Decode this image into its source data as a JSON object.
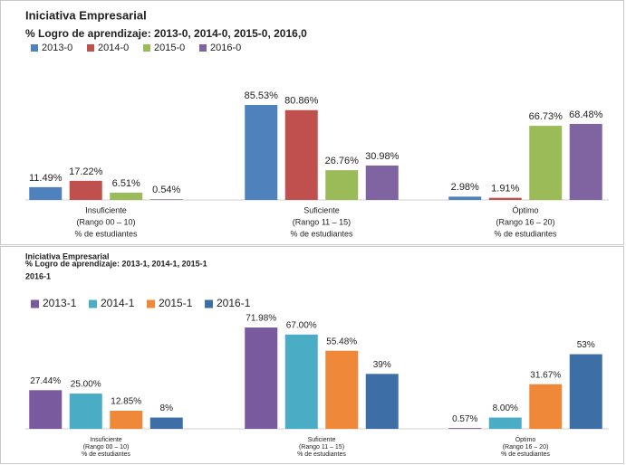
{
  "chart_data": [
    {
      "type": "bar",
      "title": "Iniciativa Empresarial",
      "subtitle": [
        "% Logro de aprendizaje: 2013-0, 2014-0, 2015-0, 2016,0"
      ],
      "categories": [
        [
          "Insuficiente",
          "(Rango 00 – 10)",
          "% de estudiantes"
        ],
        [
          "Suficiente",
          "(Rango 11 – 15)",
          "% de estudiantes"
        ],
        [
          "Óptimo",
          "(Rango 16 – 20)",
          "% de estudiantes"
        ]
      ],
      "series": [
        {
          "name": "2013-0",
          "color": "#4f81bd",
          "values": [
            11.49,
            85.53,
            2.98
          ],
          "value_labels": [
            "11.49%",
            "85.53%",
            "2.98%"
          ]
        },
        {
          "name": "2014-0",
          "color": "#c0504d",
          "values": [
            17.22,
            80.86,
            1.91
          ],
          "value_labels": [
            "17.22%",
            "80.86%",
            "1.91%"
          ]
        },
        {
          "name": "2015-0",
          "color": "#9bbb59",
          "values": [
            6.51,
            26.76,
            66.73
          ],
          "value_labels": [
            "6.51%",
            "26.76%",
            "66.73%"
          ]
        },
        {
          "name": "2016-0",
          "color": "#8064a2",
          "values": [
            0.54,
            30.98,
            68.48
          ],
          "value_labels": [
            "0.54%",
            "30.98%",
            "68.48%"
          ]
        }
      ],
      "legend": "top-left"
    },
    {
      "type": "bar",
      "title": "Iniciativa Empresarial",
      "subtitle": [
        "% Logro de aprendizaje: 2013-1, 2014-1, 2015-1",
        "2016-1"
      ],
      "categories": [
        [
          "Insuficiente",
          "(Rango 00 – 10)",
          "% de estudiantes"
        ],
        [
          "Suficiente",
          "(Rango 11 – 15)",
          "% de estudiantes"
        ],
        [
          "Óptimo",
          "(Rango 16 – 20)",
          "% de estudiantes"
        ]
      ],
      "series": [
        {
          "name": "2013-1",
          "color": "#7a5a9e",
          "values": [
            27.44,
            71.98,
            0.57
          ],
          "value_labels": [
            "27.44%",
            "71.98%",
            "0.57%"
          ]
        },
        {
          "name": "2014-1",
          "color": "#4bacc6",
          "values": [
            25.0,
            67.0,
            8.0
          ],
          "value_labels": [
            "25.00%",
            "67.00%",
            "8.00%"
          ]
        },
        {
          "name": "2015-1",
          "color": "#f0883a",
          "values": [
            12.85,
            55.48,
            31.67
          ],
          "value_labels": [
            "12.85%",
            "55.48%",
            "31.67%"
          ]
        },
        {
          "name": "2016-1",
          "color": "#3e6ea6",
          "values": [
            8,
            39,
            53
          ],
          "value_labels": [
            "8%",
            "39%",
            "53%"
          ]
        }
      ],
      "legend": "top-left"
    }
  ]
}
